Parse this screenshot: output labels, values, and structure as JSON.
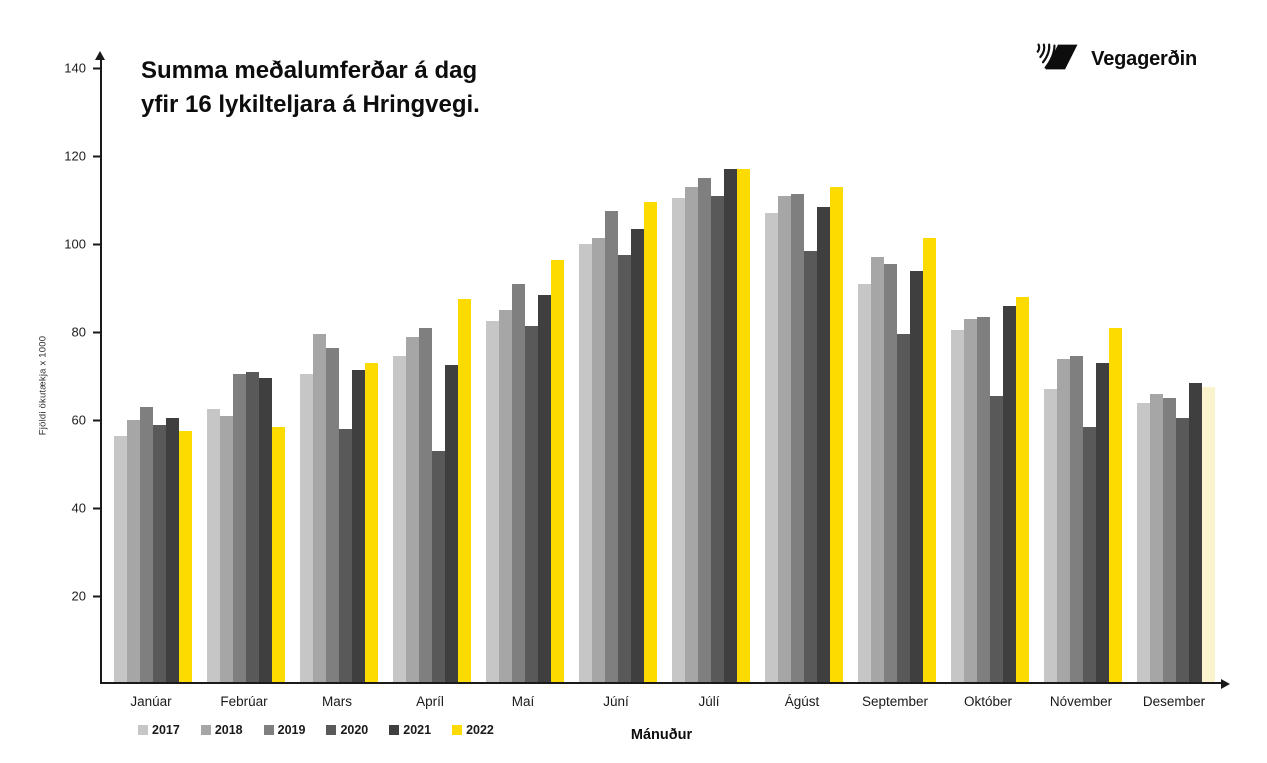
{
  "header": {
    "title_line1": "Summa meðalumferðar á dag",
    "title_line2": "yfir 16 lykilteljara á Hringvegi.",
    "logo_text": "Vegagerðin"
  },
  "colors": {
    "axis": "#1a1a1a",
    "highlight_yellow": "#FDDB00",
    "pale_yellow": "#FBF3CD"
  },
  "chart_data": {
    "type": "bar",
    "title": "Summa meðalumferðar á dag yfir 16 lykilteljara á Hringvegi.",
    "xlabel": "Mánuður",
    "ylabel": "Fjöldi ökutækja x 1000",
    "ylim": [
      0,
      140
    ],
    "y_ticks": [
      20,
      40,
      60,
      80,
      100,
      120,
      140
    ],
    "grid": false,
    "legend_position": "bottom-left",
    "categories": [
      "Janúar",
      "Febrúar",
      "Mars",
      "Apríl",
      "Maí",
      "Júní",
      "Júlí",
      "Ágúst",
      "September",
      "Október",
      "Nóvember",
      "Desember"
    ],
    "series": [
      {
        "name": "2017",
        "color": "#C6C6C6",
        "values": [
          56,
          62,
          70,
          74,
          82,
          99.5,
          110,
          106.5,
          90.5,
          80,
          66.5,
          63.5
        ]
      },
      {
        "name": "2018",
        "color": "#A6A6A6",
        "values": [
          59.5,
          60.5,
          79,
          78.5,
          84.5,
          101,
          112.5,
          110.5,
          96.5,
          82.5,
          73.5,
          65.5
        ]
      },
      {
        "name": "2019",
        "color": "#7F7F7F",
        "values": [
          62.5,
          70,
          76,
          80.5,
          90.5,
          107,
          114.5,
          111,
          95,
          83,
          74,
          64.5
        ]
      },
      {
        "name": "2020",
        "color": "#595959",
        "values": [
          58.5,
          70.5,
          57.5,
          52.5,
          81,
          97,
          110.5,
          98,
          79,
          65,
          58,
          60
        ]
      },
      {
        "name": "2021",
        "color": "#3F3F3F",
        "values": [
          60,
          69,
          71,
          72,
          88,
          103,
          116.5,
          108,
          93.5,
          85.5,
          72.5,
          68
        ]
      },
      {
        "name": "2022",
        "color": "#FDDB00",
        "values": [
          57,
          58,
          72.5,
          87,
          96,
          109,
          116.5,
          112.5,
          101,
          87.5,
          80.5,
          67
        ]
      }
    ],
    "overrides": [
      {
        "series": "2022",
        "category": "Desember",
        "color": "#FBF3CD"
      }
    ]
  }
}
